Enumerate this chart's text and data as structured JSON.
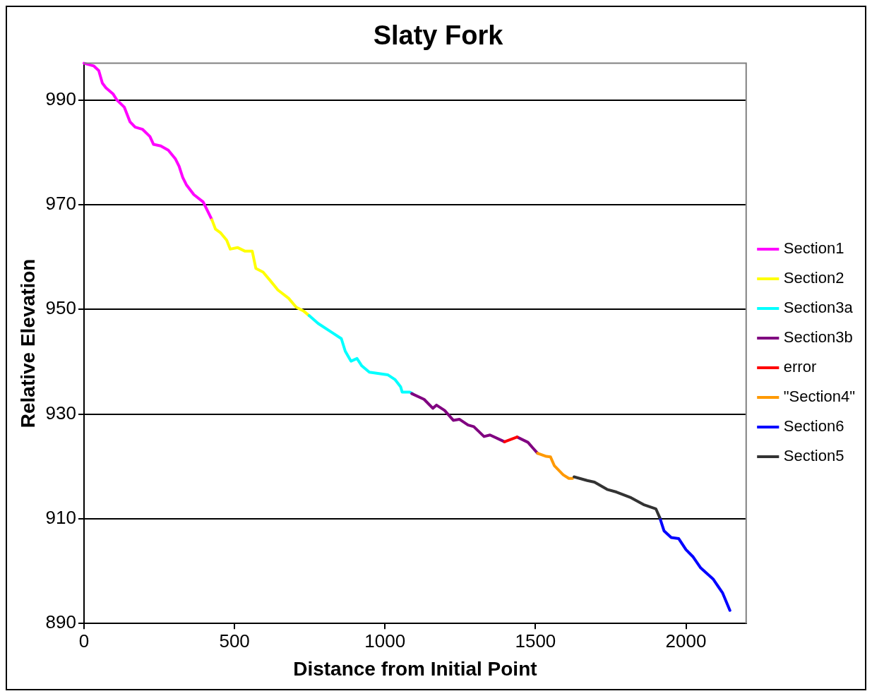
{
  "chart_data": {
    "type": "line",
    "title": "Slaty Fork",
    "xlabel": "Distance from Initial Point",
    "ylabel": "Relative Elevation",
    "xlim": [
      0,
      2200
    ],
    "xticks": [
      0,
      500,
      1000,
      1500,
      2000
    ],
    "ylim": [
      890,
      997
    ],
    "yticks": [
      890,
      910,
      930,
      950,
      970,
      990
    ],
    "grid": "y",
    "legend": "right",
    "marker": "none",
    "line_style": "solid",
    "series": [
      {
        "name": "Section1",
        "color": "#ff00ff",
        "x": [
          0,
          32,
          49,
          61,
          73,
          97,
          109,
          134,
          153,
          170,
          194,
          219,
          231,
          255,
          280,
          304,
          316,
          328,
          340,
          365,
          396,
          425
        ],
        "values": [
          997,
          996.5,
          995.6,
          993.2,
          992.3,
          991.1,
          990,
          988.6,
          985.8,
          984.8,
          984.4,
          983,
          981.5,
          981.2,
          980.4,
          978.7,
          977.3,
          975.2,
          973.8,
          971.9,
          970.5,
          967.1
        ]
      },
      {
        "name": "Section2",
        "color": "#ffff00",
        "x": [
          425,
          437,
          454,
          474,
          486,
          510,
          535,
          559,
          571,
          595,
          620,
          644,
          680,
          705,
          729,
          748
        ],
        "values": [
          967.1,
          965.3,
          964.6,
          963.2,
          961.5,
          961.8,
          961.1,
          961.1,
          957.8,
          957.1,
          955.4,
          953.7,
          952.1,
          950.4,
          949.7,
          948.8
        ]
      },
      {
        "name": "Section3a",
        "color": "#00ffff",
        "x": [
          748,
          778,
          826,
          855,
          868,
          887,
          907,
          923,
          948,
          1009,
          1033,
          1052,
          1057,
          1082,
          1091
        ],
        "values": [
          948.8,
          947.3,
          945.5,
          944.4,
          942,
          940.1,
          940.6,
          939.2,
          938,
          937.5,
          936.6,
          935.2,
          934.2,
          934.2,
          933.9
        ]
      },
      {
        "name": "Section3b",
        "color": "#800080",
        "x": [
          1089,
          1130,
          1159,
          1171,
          1198,
          1227,
          1247,
          1276,
          1295,
          1329,
          1349,
          1390,
          1397,
          1420,
          1439,
          1475,
          1490,
          1507
        ],
        "values": [
          933.9,
          932.8,
          931.1,
          931.7,
          930.7,
          928.8,
          929,
          927.9,
          927.6,
          925.7,
          926,
          924.9,
          924.7,
          null,
          925.6,
          924.6,
          923.6,
          922.5
        ]
      },
      {
        "name": "error",
        "color": "#ff0000",
        "x": [
          1397,
          1439
        ],
        "values": [
          924.7,
          925.6
        ]
      },
      {
        "name": "\"Section4\"",
        "color": "#ff9900",
        "x": [
          1507,
          1536,
          1550,
          1563,
          1592,
          1611,
          1623
        ],
        "values": [
          922.5,
          921.9,
          921.8,
          920.1,
          918.4,
          917.7,
          917.7
        ]
      },
      {
        "name": "Section6",
        "color": "#0000ff",
        "x": [
          1913,
          1927,
          1951,
          1976,
          2000,
          2024,
          2049,
          2090,
          2122,
          2146
        ],
        "values": [
          910.2,
          907.7,
          906.4,
          906.2,
          904.1,
          902.7,
          900.6,
          898.5,
          895.8,
          892.5
        ]
      },
      {
        "name": "Section5",
        "color": "#333333",
        "x": [
          1628,
          1672,
          1696,
          1738,
          1769,
          1818,
          1859,
          1900,
          1913
        ],
        "values": [
          918,
          917.3,
          917,
          915.6,
          915.1,
          914,
          912.7,
          911.9,
          910.2
        ]
      }
    ]
  }
}
